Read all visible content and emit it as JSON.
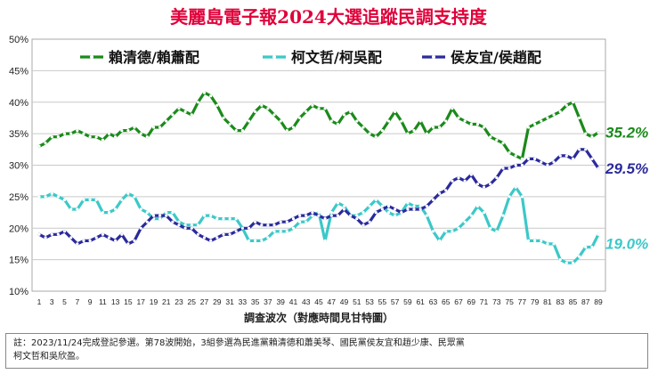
{
  "chart_data": {
    "type": "line",
    "title": "美麗島電子報2024大選追蹤民調支持度",
    "xlabel": "調查波次（對應時間見甘特圖）",
    "ylabel": "",
    "ylim": [
      10,
      50
    ],
    "y_ticks": [
      "10%",
      "15%",
      "20%",
      "25%",
      "30%",
      "35%",
      "40%",
      "45%",
      "50%"
    ],
    "x": [
      1,
      2,
      3,
      4,
      5,
      6,
      7,
      8,
      9,
      10,
      11,
      12,
      13,
      14,
      15,
      16,
      17,
      18,
      19,
      20,
      21,
      22,
      23,
      24,
      25,
      26,
      27,
      28,
      29,
      30,
      31,
      32,
      33,
      34,
      35,
      36,
      37,
      38,
      39,
      40,
      41,
      42,
      43,
      44,
      45,
      46,
      47,
      48,
      49,
      50,
      51,
      52,
      53,
      54,
      55,
      56,
      57,
      58,
      59,
      60,
      61,
      62,
      63,
      64,
      65,
      66,
      67,
      68,
      69,
      70,
      71,
      72,
      73,
      74,
      75,
      76,
      77,
      78,
      79,
      80,
      81,
      82,
      83,
      84,
      85,
      86,
      87,
      88,
      89
    ],
    "x_tick_labels": [
      "1",
      "3",
      "5",
      "7",
      "9",
      "11",
      "13",
      "15",
      "17",
      "19",
      "21",
      "23",
      "25",
      "27",
      "29",
      "31",
      "33",
      "35",
      "37",
      "39",
      "41",
      "43",
      "45",
      "47",
      "49",
      "51",
      "53",
      "55",
      "57",
      "59",
      "61",
      "63",
      "65",
      "67",
      "69",
      "71",
      "73",
      "75",
      "77",
      "79",
      "81",
      "83",
      "85",
      "87",
      "89"
    ],
    "grid": true,
    "legend_position": "top",
    "series": [
      {
        "name": "賴清德/賴蕭配",
        "color": "#1a8a1a",
        "end_label": "35.2%",
        "values": [
          33,
          33.5,
          34.5,
          34.5,
          35,
          35,
          35.5,
          35,
          34.5,
          34.5,
          34,
          35,
          34.5,
          35.5,
          35.5,
          36,
          35,
          34.5,
          36,
          36,
          37,
          38,
          39,
          38.5,
          38,
          40,
          41.5,
          41,
          39.5,
          37.5,
          36.5,
          35.5,
          35.5,
          37,
          38.5,
          39.5,
          39,
          38,
          37,
          35.5,
          36,
          37.5,
          38.5,
          39.5,
          39,
          39,
          37,
          36.5,
          38,
          38.5,
          37,
          36,
          35,
          34.5,
          35.5,
          37,
          38.5,
          37,
          35,
          35.5,
          37,
          35,
          36,
          36,
          37,
          39,
          37.5,
          37,
          36.5,
          36.5,
          36,
          34.5,
          34,
          33.5,
          32,
          31.5,
          31,
          36,
          36.5,
          37,
          37.5,
          38,
          38.5,
          39.5,
          40,
          37.5,
          35,
          34.5,
          35.2
        ]
      },
      {
        "name": "柯文哲/柯吳配",
        "color": "#3cc8c8",
        "end_label": "19.0%",
        "values": [
          25,
          25,
          25.5,
          25,
          24.5,
          23,
          23,
          24.5,
          24.5,
          24.5,
          22.5,
          22.5,
          23,
          24.5,
          25.5,
          25,
          23,
          22.5,
          21.5,
          21.5,
          22.5,
          22.5,
          21,
          20.5,
          20.5,
          20.5,
          22,
          22,
          21.5,
          21.5,
          21.5,
          21.5,
          20,
          18,
          18,
          18,
          18.5,
          19.5,
          19.5,
          19.5,
          20,
          21,
          21,
          22,
          22.5,
          18,
          22.5,
          24,
          23.5,
          22,
          22,
          22.5,
          23.5,
          24.5,
          23.5,
          22.5,
          22,
          22.5,
          24,
          23.5,
          23.5,
          22,
          19.5,
          18,
          19.5,
          19.5,
          20,
          21,
          22,
          23.5,
          22.5,
          20,
          19.5,
          22,
          25,
          26.5,
          25,
          18,
          18,
          18,
          17.5,
          17.5,
          15,
          14.5,
          14.5,
          15.5,
          17,
          17,
          19
        ]
      },
      {
        "name": "侯友宜/侯趙配",
        "color": "#2a2a9c",
        "end_label": "29.5%",
        "values": [
          19,
          18.5,
          19,
          19,
          19.5,
          18.5,
          17.5,
          18,
          18,
          18.5,
          19,
          18.5,
          18,
          19,
          17.5,
          18,
          20,
          21,
          22,
          22,
          22,
          21,
          20.5,
          20,
          20,
          19,
          18.5,
          18,
          18.5,
          19,
          19,
          19.5,
          20,
          20,
          21,
          20.5,
          20.5,
          20.5,
          21,
          21,
          21.5,
          22,
          22,
          22.5,
          22,
          21.5,
          22,
          22,
          23,
          22,
          21.5,
          20.5,
          21,
          22.5,
          23,
          23.5,
          23,
          22.5,
          23,
          23,
          23,
          23.5,
          24.5,
          25.5,
          26,
          27.5,
          28,
          27.5,
          28.5,
          27,
          26.5,
          27,
          28,
          29.5,
          29.5,
          30,
          30,
          31,
          31,
          30.5,
          30,
          30.5,
          31.5,
          31.5,
          31,
          32.5,
          32.5,
          31,
          29.5
        ]
      }
    ]
  },
  "note": {
    "line1": "註：2023/11/24完成登記參選。第78波開始，3組參選為民進黨賴清德和蕭美琴、國民黨侯友宜和趙少康、民眾黨",
    "line2": "柯文哲和吳欣盈。"
  }
}
